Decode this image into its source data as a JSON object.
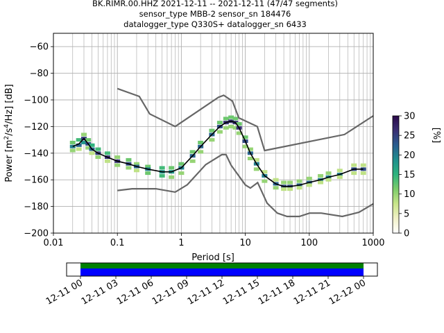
{
  "title_lines": [
    "BK.RIMR.00.HHZ   2021-12-11 -- 2021-12-11  (47/47 segments)",
    "sensor_type MBB-2 sensor_sn 184476",
    "datalogger_type Q330S+ datalogger_sn 6433"
  ],
  "chart_data": [
    {
      "type": "heatmap",
      "title": "BK.RIMR.00.HHZ   2021-12-11 -- 2021-12-11  (47/47 segments)",
      "xlabel": "Period [s]",
      "ylabel": "Power [m²/s⁴/Hz] [dB]",
      "xscale": "log",
      "xlim": [
        0.01,
        1000
      ],
      "ylim": [
        -200,
        -50
      ],
      "xticks": [
        0.01,
        0.1,
        1,
        10,
        100,
        1000
      ],
      "xtick_labels": [
        "0.01",
        "0.1",
        "1",
        "10",
        "100",
        "1000"
      ],
      "yticks": [
        -200,
        -180,
        -160,
        -140,
        -120,
        -100,
        -80,
        -60
      ],
      "ytick_labels": [
        "−200",
        "−180",
        "−160",
        "−140",
        "−120",
        "−100",
        "−80",
        "−60"
      ],
      "grid": true,
      "colorbar": {
        "label": "[%]",
        "range": [
          0,
          30
        ],
        "ticks": [
          0,
          5,
          10,
          15,
          20,
          25,
          30
        ],
        "tick_labels": [
          "0",
          "5",
          "10",
          "15",
          "20",
          "25",
          "30"
        ],
        "colormap": [
          "#ffffff",
          "#f1f1c8",
          "#c9e58a",
          "#7dcc6a",
          "#2eb37e",
          "#1f8f8e",
          "#2a5d8f",
          "#3a2f73",
          "#2b0a4a"
        ]
      },
      "mode_line": {
        "name": "mode",
        "color": "#000000",
        "x": [
          0.02,
          0.025,
          0.03,
          0.035,
          0.04,
          0.05,
          0.07,
          0.1,
          0.15,
          0.2,
          0.3,
          0.5,
          0.7,
          1,
          1.5,
          2,
          3,
          4,
          5,
          6,
          7,
          8,
          10,
          12,
          15,
          20,
          30,
          40,
          50,
          70,
          100,
          150,
          200,
          300,
          500,
          700
        ],
        "y": [
          -135,
          -133,
          -129,
          -133,
          -137,
          -140,
          -143,
          -146,
          -148,
          -150,
          -152,
          -154,
          -154,
          -151,
          -142,
          -135,
          -126,
          -120,
          -117,
          -116,
          -117,
          -121,
          -131,
          -140,
          -148,
          -157,
          -163,
          -165,
          -165,
          -164,
          -162,
          -160,
          -158,
          -156,
          -152,
          -152
        ]
      },
      "noise_models": [
        {
          "name": "high-noise-model",
          "color": "#666666",
          "x": [
            0.1,
            0.22,
            0.32,
            0.8,
            3.8,
            4.6,
            6.3,
            7.9,
            15.4,
            20,
            354.8,
            1000
          ],
          "y": [
            -91.5,
            -97.4,
            -110.5,
            -120,
            -98,
            -96.5,
            -101,
            -113.5,
            -120,
            -138,
            -126,
            -112
          ]
        },
        {
          "name": "low-noise-model",
          "color": "#666666",
          "x": [
            0.1,
            0.17,
            0.4,
            0.8,
            1.24,
            2.4,
            4.3,
            5,
            6,
            10,
            12,
            15.6,
            21.9,
            31.6,
            45,
            70,
            101,
            154,
            328,
            600,
            1000
          ],
          "y": [
            -168,
            -166.7,
            -166.7,
            -169.2,
            -163.7,
            -148.6,
            -141.1,
            -141.1,
            -149,
            -163.8,
            -166.2,
            -162.1,
            -177.5,
            -185,
            -187.5,
            -187.5,
            -185,
            -185,
            -187.5,
            -184.4,
            -178
          ]
        }
      ],
      "density": {
        "description_fields": [
          "period",
          "power_db",
          "percent"
        ],
        "cells": [
          [
            0.02,
            -132,
            12
          ],
          [
            0.02,
            -135,
            20
          ],
          [
            0.02,
            -138,
            10
          ],
          [
            0.025,
            -130,
            14
          ],
          [
            0.025,
            -134,
            22
          ],
          [
            0.025,
            -137,
            8
          ],
          [
            0.03,
            -126,
            10
          ],
          [
            0.03,
            -129,
            25
          ],
          [
            0.03,
            -132,
            18
          ],
          [
            0.035,
            -130,
            12
          ],
          [
            0.035,
            -133,
            24
          ],
          [
            0.035,
            -136,
            10
          ],
          [
            0.04,
            -134,
            15
          ],
          [
            0.04,
            -137,
            22
          ],
          [
            0.04,
            -140,
            8
          ],
          [
            0.05,
            -137,
            14
          ],
          [
            0.05,
            -140,
            25
          ],
          [
            0.05,
            -143,
            10
          ],
          [
            0.07,
            -140,
            14
          ],
          [
            0.07,
            -143,
            26
          ],
          [
            0.07,
            -146,
            8
          ],
          [
            0.1,
            -143,
            10
          ],
          [
            0.1,
            -146,
            26
          ],
          [
            0.1,
            -149,
            10
          ],
          [
            0.15,
            -145,
            12
          ],
          [
            0.15,
            -148,
            24
          ],
          [
            0.15,
            -151,
            10
          ],
          [
            0.2,
            -148,
            10
          ],
          [
            0.2,
            -150,
            22
          ],
          [
            0.2,
            -153,
            8
          ],
          [
            0.3,
            -150,
            12
          ],
          [
            0.3,
            -152,
            20
          ],
          [
            0.3,
            -155,
            12
          ],
          [
            0.5,
            -151,
            14
          ],
          [
            0.5,
            -154,
            18
          ],
          [
            0.5,
            -157,
            14
          ],
          [
            0.7,
            -151,
            12
          ],
          [
            0.7,
            -154,
            18
          ],
          [
            0.7,
            -158,
            10
          ],
          [
            1,
            -148,
            12
          ],
          [
            1,
            -151,
            20
          ],
          [
            1,
            -155,
            10
          ],
          [
            1.5,
            -139,
            12
          ],
          [
            1.5,
            -142,
            22
          ],
          [
            1.5,
            -146,
            10
          ],
          [
            2,
            -132,
            12
          ],
          [
            2,
            -135,
            22
          ],
          [
            2,
            -139,
            10
          ],
          [
            3,
            -123,
            12
          ],
          [
            3,
            -126,
            22
          ],
          [
            3,
            -130,
            10
          ],
          [
            4,
            -117,
            12
          ],
          [
            4,
            -120,
            24
          ],
          [
            4,
            -124,
            10
          ],
          [
            5,
            -114,
            12
          ],
          [
            5,
            -117,
            26
          ],
          [
            5,
            -121,
            10
          ],
          [
            6,
            -113,
            12
          ],
          [
            6,
            -116,
            26
          ],
          [
            6,
            -120,
            10
          ],
          [
            7,
            -114,
            12
          ],
          [
            7,
            -117,
            26
          ],
          [
            7,
            -121,
            10
          ],
          [
            8,
            -118,
            12
          ],
          [
            8,
            -121,
            26
          ],
          [
            8,
            -125,
            10
          ],
          [
            10,
            -128,
            12
          ],
          [
            10,
            -131,
            24
          ],
          [
            10,
            -135,
            10
          ],
          [
            12,
            -137,
            10
          ],
          [
            12,
            -140,
            22
          ],
          [
            12,
            -144,
            10
          ],
          [
            15,
            -145,
            8
          ],
          [
            15,
            -148,
            20
          ],
          [
            15,
            -152,
            10
          ],
          [
            20,
            -154,
            8
          ],
          [
            20,
            -157,
            20
          ],
          [
            20,
            -161,
            10
          ],
          [
            30,
            -160,
            8
          ],
          [
            30,
            -163,
            22
          ],
          [
            30,
            -166,
            10
          ],
          [
            40,
            -162,
            10
          ],
          [
            40,
            -165,
            24
          ],
          [
            40,
            -167,
            8
          ],
          [
            50,
            -162,
            10
          ],
          [
            50,
            -165,
            24
          ],
          [
            50,
            -167,
            8
          ],
          [
            70,
            -161,
            10
          ],
          [
            70,
            -164,
            22
          ],
          [
            70,
            -166,
            8
          ],
          [
            100,
            -159,
            10
          ],
          [
            100,
            -162,
            22
          ],
          [
            100,
            -164,
            8
          ],
          [
            150,
            -157,
            10
          ],
          [
            150,
            -160,
            20
          ],
          [
            150,
            -162,
            8
          ],
          [
            200,
            -155,
            10
          ],
          [
            200,
            -158,
            20
          ],
          [
            200,
            -160,
            8
          ],
          [
            300,
            -153,
            8
          ],
          [
            300,
            -156,
            20
          ],
          [
            300,
            -158,
            8
          ],
          [
            500,
            -149,
            8
          ],
          [
            500,
            -152,
            24
          ],
          [
            500,
            -155,
            8
          ],
          [
            700,
            -149,
            8
          ],
          [
            700,
            -152,
            24
          ],
          [
            700,
            -155,
            8
          ]
        ]
      }
    },
    {
      "type": "timeline",
      "xlim": [
        "2021-12-11 00:00",
        "2021-12-12 00:00"
      ],
      "xtick_labels": [
        "12-11 00",
        "12-11 03",
        "12-11 06",
        "12-11 09",
        "12-11 12",
        "12-11 15",
        "12-11 18",
        "12-11 21",
        "12-12 00"
      ],
      "bars": [
        {
          "name": "data-available",
          "color": "#008000",
          "start": "2021-12-11 00:00",
          "end": "2021-12-12 00:00"
        },
        {
          "name": "psd-segments-used",
          "color": "#0000ff",
          "start": "2021-12-11 00:00",
          "end": "2021-12-12 00:00"
        }
      ]
    }
  ]
}
